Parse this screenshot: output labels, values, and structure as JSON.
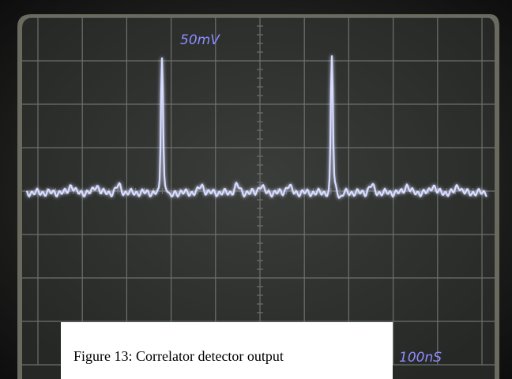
{
  "screen": {
    "volts_per_div": "50mV",
    "time_per_div": "100nS"
  },
  "caption": "Figure 13: Correlator detector output"
}
